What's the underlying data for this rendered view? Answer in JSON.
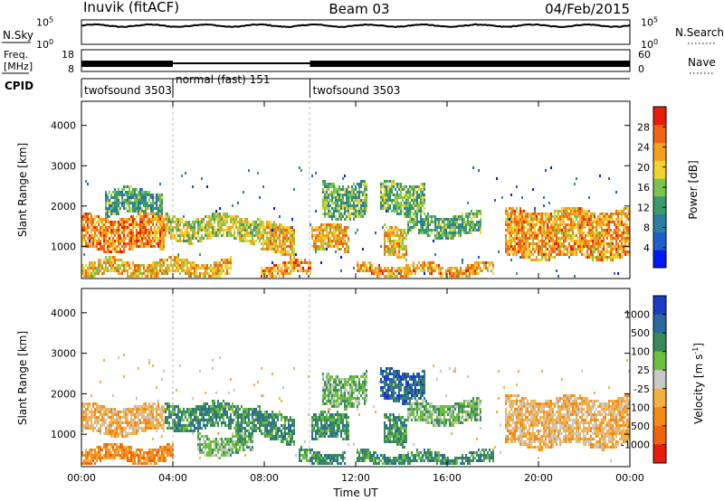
{
  "header": {
    "site": "Inuvik (fitACF)",
    "beam": "Beam 03",
    "date": "04/Feb/2015"
  },
  "panels": {
    "nsky": {
      "label": "N.Sky",
      "right_label": "N.Search",
      "left_ticks": [
        {
          "base": "10",
          "exp": "5",
          "v": 5
        },
        {
          "base": "10",
          "exp": "0",
          "v": 0
        }
      ],
      "right_ticks": [
        {
          "base": "10",
          "exp": "5",
          "v": 5
        },
        {
          "base": "10",
          "exp": "0",
          "v": 0
        }
      ],
      "trace_level": 4.2
    },
    "freq": {
      "label_line1": "Freq.",
      "label_line2": "[MHz]",
      "left_ticks": [
        "18",
        "8"
      ],
      "right_ticks": [
        "60",
        "0"
      ],
      "right_label": "Nave",
      "freq_segments": [
        {
          "from_h": 0.0,
          "to_h": 4.0,
          "kind": "dense"
        },
        {
          "from_h": 4.0,
          "to_h": 10.0,
          "kind": "line"
        },
        {
          "from_h": 10.0,
          "to_h": 24.0,
          "kind": "dense"
        }
      ]
    },
    "cpid": {
      "label": "CPID",
      "segments": [
        {
          "start_h": 0.0,
          "text": "twofsound 3503"
        },
        {
          "start_h": 4.0,
          "text": "normal (fast) 151"
        },
        {
          "start_h": 10.0,
          "text": "twofsound 3503"
        }
      ]
    }
  },
  "chart_data": [
    {
      "type": "heatmap",
      "name": "power",
      "ylabel": "Slant Range [km]",
      "xlim_hours": [
        0,
        24
      ],
      "ylim_km": [
        200,
        4600
      ],
      "yticks": [
        1000,
        2000,
        3000,
        4000
      ],
      "colorbar": {
        "label": "Power [dB]",
        "range": [
          0,
          32
        ],
        "ticks": [
          4,
          8,
          12,
          16,
          20,
          24,
          28
        ],
        "colors": [
          "#0018f8",
          "#1f5fc8",
          "#2a7fa0",
          "#3a9a6a",
          "#7cc44c",
          "#f0d230",
          "#f5a01e",
          "#f06414",
          "#e81c0a"
        ]
      },
      "bands": [
        {
          "t0": 0.0,
          "t1": 3.6,
          "r0": 900,
          "r1": 1750,
          "mean": 25
        },
        {
          "t0": 3.6,
          "t1": 7.8,
          "r0": 1150,
          "r1": 1750,
          "mean": 19
        },
        {
          "t0": 7.8,
          "t1": 9.3,
          "r0": 800,
          "r1": 1550,
          "mean": 22
        },
        {
          "t0": 10.0,
          "t1": 11.7,
          "r0": 850,
          "r1": 1500,
          "mean": 23
        },
        {
          "t0": 13.2,
          "t1": 14.2,
          "r0": 700,
          "r1": 1450,
          "mean": 22
        },
        {
          "t0": 14.2,
          "t1": 17.5,
          "r0": 1250,
          "r1": 1800,
          "mean": 13
        },
        {
          "t0": 18.5,
          "t1": 24.0,
          "r0": 700,
          "r1": 1900,
          "mean": 24
        },
        {
          "t0": 0.0,
          "t1": 6.5,
          "r0": 250,
          "r1": 650,
          "mean": 22
        },
        {
          "t0": 7.8,
          "t1": 10.0,
          "r0": 250,
          "r1": 600,
          "mean": 25
        },
        {
          "t0": 12.0,
          "t1": 18.0,
          "r0": 250,
          "r1": 550,
          "mean": 24
        },
        {
          "t0": 1.0,
          "t1": 3.5,
          "r0": 1750,
          "r1": 2400,
          "mean": 12
        },
        {
          "t0": 10.5,
          "t1": 12.5,
          "r0": 1700,
          "r1": 2600,
          "mean": 14
        },
        {
          "t0": 13.0,
          "t1": 15.0,
          "r0": 1800,
          "r1": 2600,
          "mean": 15
        }
      ]
    },
    {
      "type": "heatmap",
      "name": "velocity",
      "xlabel": "Time UT",
      "ylabel": "Slant Range [km]",
      "xlim_hours": [
        0,
        24
      ],
      "ylim_km": [
        200,
        4600
      ],
      "yticks": [
        1000,
        2000,
        3000,
        4000
      ],
      "xticks": [
        "00:00",
        "04:00",
        "08:00",
        "12:00",
        "16:00",
        "20:00",
        "00:00"
      ],
      "colorbar": {
        "label": "Velocity [m s",
        "label_sup": "-1",
        "label_end": "]",
        "ticks": [
          "1000",
          "500",
          "100",
          "25",
          "-25",
          "-100",
          "-500",
          "-1000"
        ],
        "colors": [
          "#1c3cc8",
          "#2a6aa0",
          "#3a8a5a",
          "#6cc040",
          "#c8c8c8",
          "#f5b040",
          "#f58a14",
          "#f06410",
          "#e81c0a"
        ]
      },
      "bands": [
        {
          "t0": 0.0,
          "t1": 3.6,
          "r0": 1000,
          "r1": 1700,
          "cls": "-100"
        },
        {
          "t0": 3.6,
          "t1": 7.8,
          "r0": 1100,
          "r1": 1750,
          "cls": "100"
        },
        {
          "t0": 7.8,
          "t1": 9.3,
          "r0": 800,
          "r1": 1500,
          "cls": "100"
        },
        {
          "t0": 10.0,
          "t1": 11.7,
          "r0": 850,
          "r1": 1500,
          "cls": "100"
        },
        {
          "t0": 13.2,
          "t1": 14.2,
          "r0": 700,
          "r1": 1450,
          "cls": "100"
        },
        {
          "t0": 14.2,
          "t1": 17.5,
          "r0": 1250,
          "r1": 1800,
          "cls": "25"
        },
        {
          "t0": 18.5,
          "t1": 24.0,
          "r0": 700,
          "r1": 1900,
          "cls": "-100"
        },
        {
          "t0": 0.0,
          "t1": 4.0,
          "r0": 300,
          "r1": 700,
          "cls": "-500"
        },
        {
          "t0": 5.0,
          "t1": 7.5,
          "r0": 500,
          "r1": 1000,
          "cls": "25"
        },
        {
          "t0": 9.5,
          "t1": 11.5,
          "r0": 250,
          "r1": 600,
          "cls": "100"
        },
        {
          "t0": 12.0,
          "t1": 18.0,
          "r0": 250,
          "r1": 550,
          "cls": "100"
        },
        {
          "t0": 10.5,
          "t1": 12.5,
          "r0": 1700,
          "r1": 2500,
          "cls": "25"
        },
        {
          "t0": 13.0,
          "t1": 15.0,
          "r0": 1800,
          "r1": 2600,
          "cls": "500"
        }
      ]
    }
  ]
}
